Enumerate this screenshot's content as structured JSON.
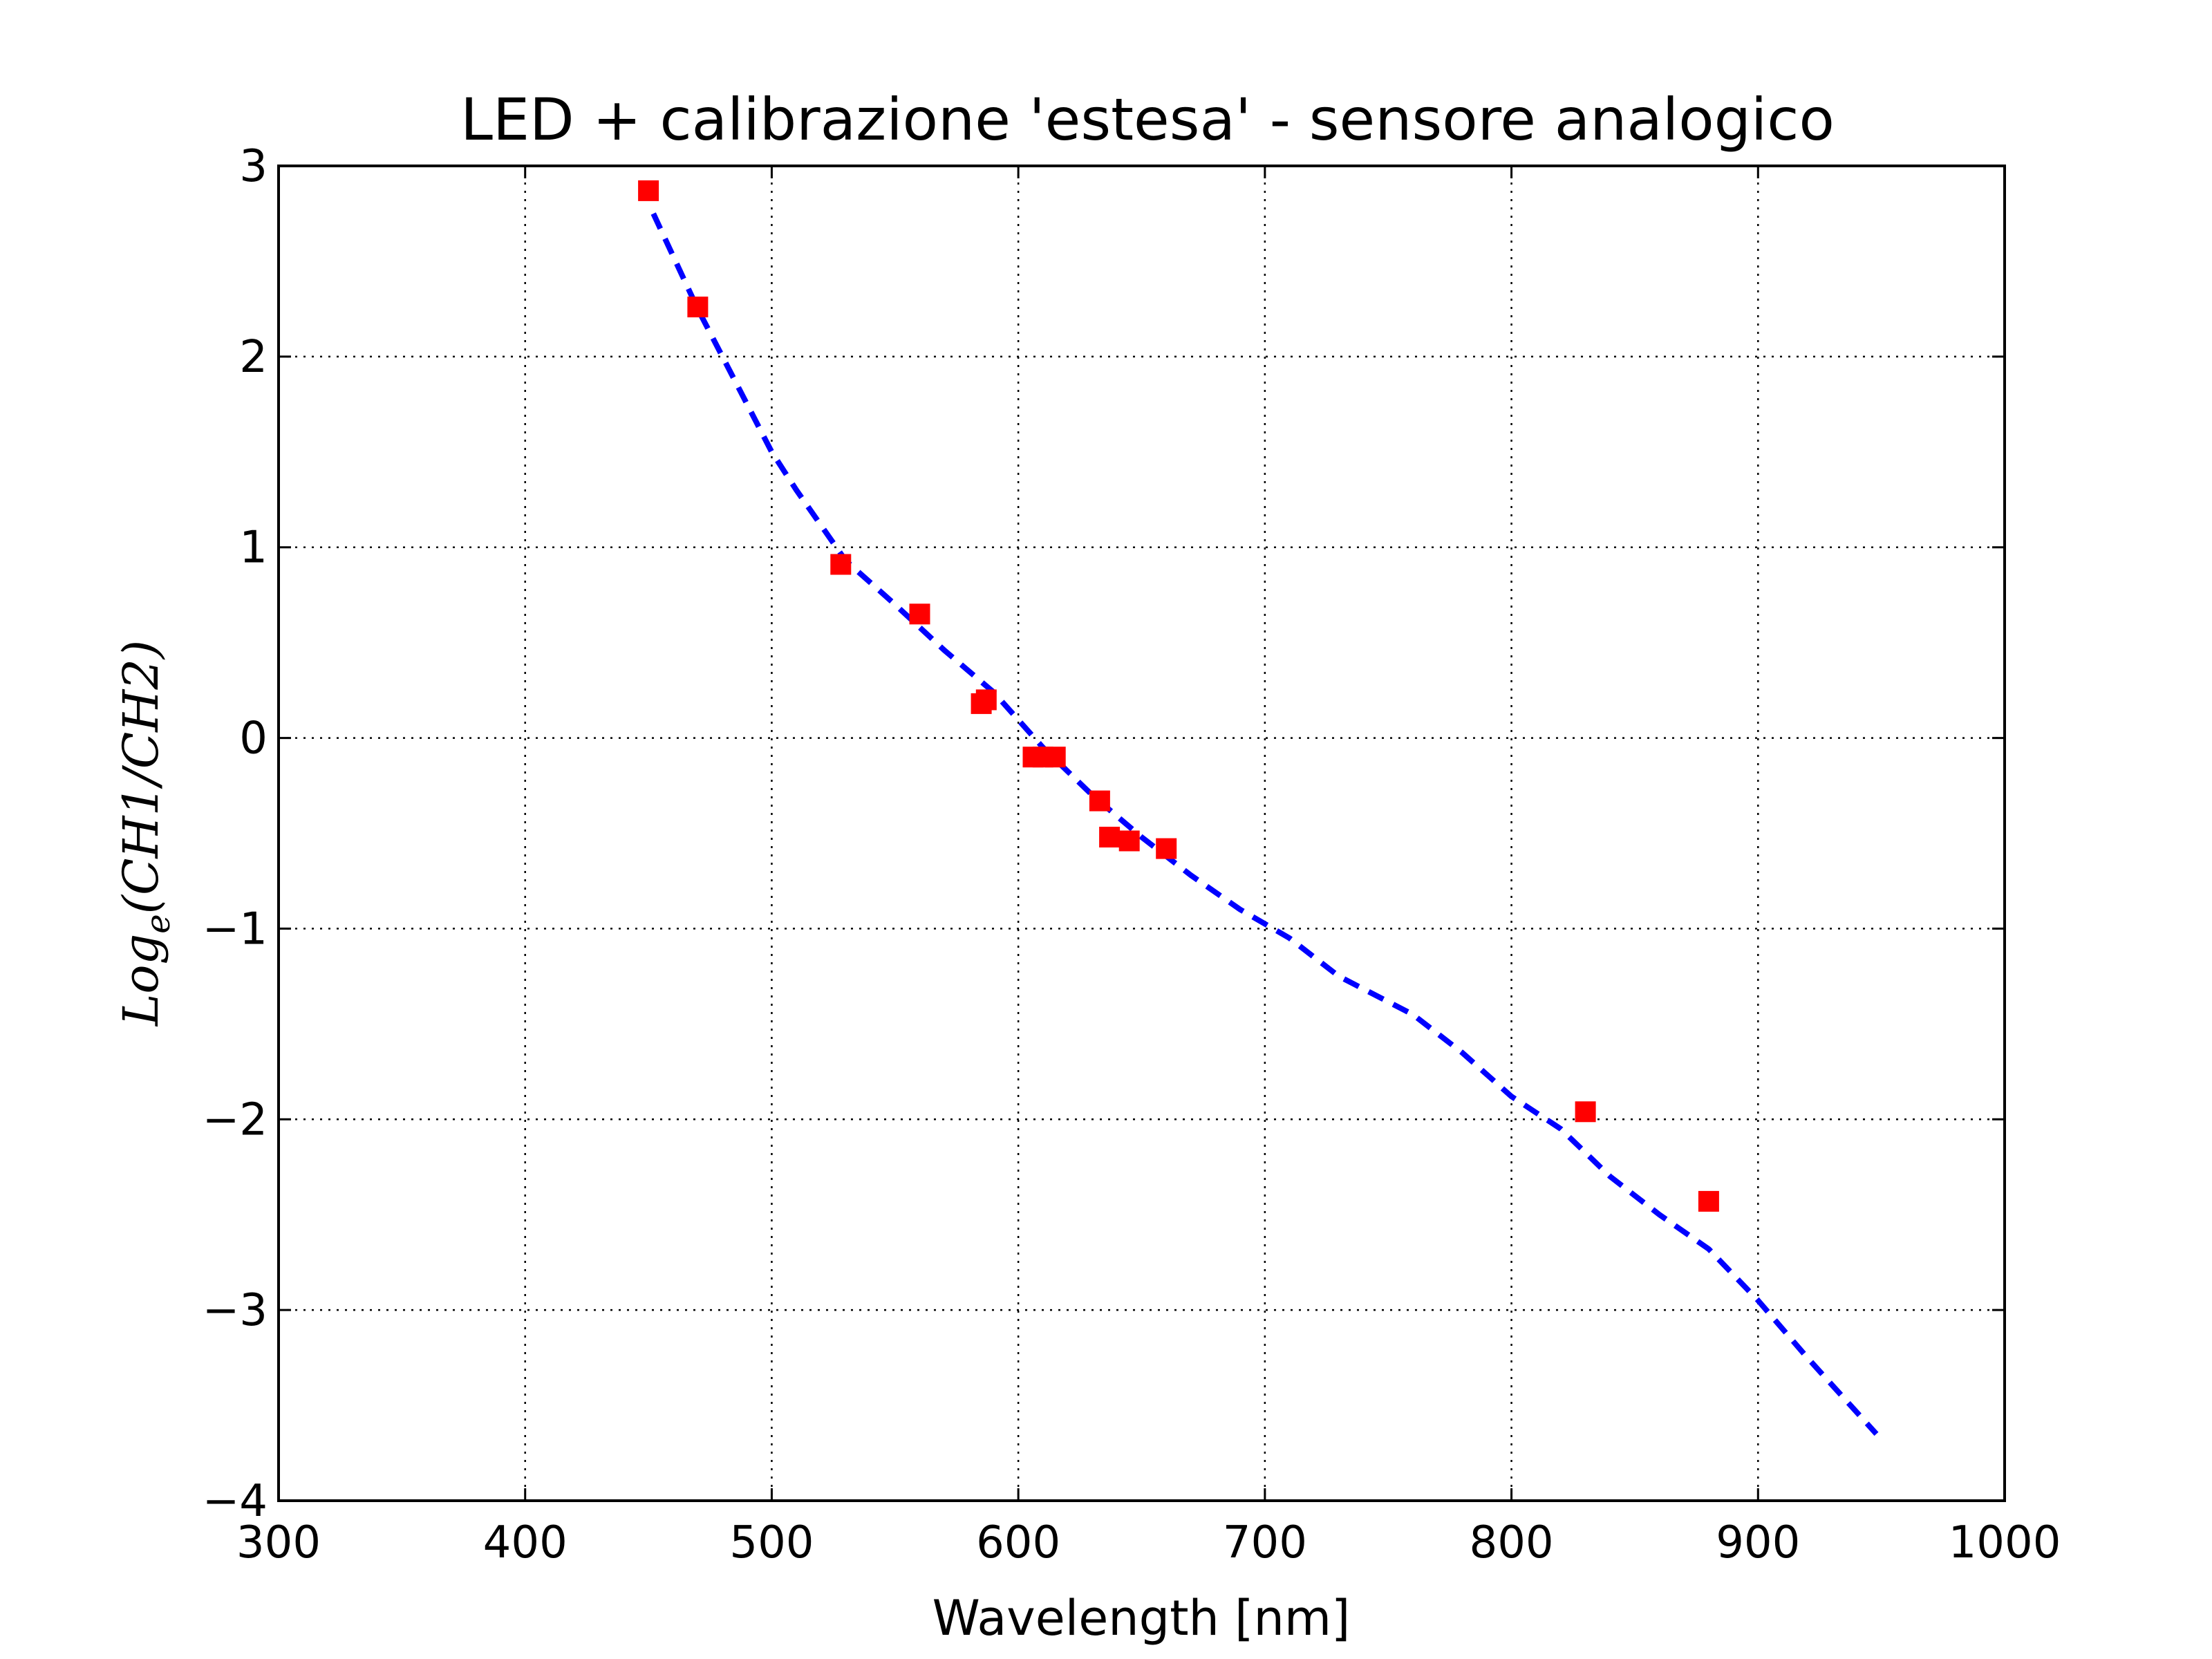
{
  "chart_data": {
    "type": "scatter",
    "title": "LED + calibrazione 'estesa' - sensore analogico",
    "xlabel": "Wavelength [nm]",
    "ylabel": {
      "prefix": "Log",
      "subscript": "e",
      "suffix": "(CH1/CH2)"
    },
    "xlim": [
      300,
      1000
    ],
    "ylim": [
      -4,
      3
    ],
    "xticks": [
      300,
      400,
      500,
      600,
      700,
      800,
      900,
      1000
    ],
    "yticks": [
      3,
      2,
      1,
      0,
      -1,
      -2,
      -3,
      -4
    ],
    "xtick_labels": [
      "300",
      "400",
      "500",
      "600",
      "700",
      "800",
      "900",
      "1000"
    ],
    "ytick_labels": [
      "3",
      "2",
      "1",
      "0",
      "−1",
      "−2",
      "−3",
      "−4"
    ],
    "grid": true,
    "series": [
      {
        "kind": "scatter",
        "marker": "square",
        "color": "#ff0000",
        "x": [
          450,
          470,
          528,
          560,
          585,
          587,
          606,
          610,
          615,
          633,
          637,
          645,
          660,
          830,
          880
        ],
        "y": [
          2.87,
          2.26,
          0.91,
          0.65,
          0.18,
          0.2,
          -0.1,
          -0.1,
          -0.1,
          -0.33,
          -0.52,
          -0.54,
          -0.58,
          -1.96,
          -2.43
        ]
      },
      {
        "kind": "line",
        "style": "dashed",
        "color": "#0000ff",
        "x": [
          452,
          470,
          490,
          500,
          510,
          530,
          550,
          570,
          590,
          610,
          630,
          650,
          670,
          690,
          710,
          730,
          760,
          780,
          800,
          820,
          840,
          860,
          880,
          900,
          920,
          948
        ],
        "y": [
          2.75,
          2.25,
          1.75,
          1.5,
          1.3,
          0.93,
          0.7,
          0.46,
          0.24,
          -0.05,
          -0.3,
          -0.52,
          -0.72,
          -0.9,
          -1.05,
          -1.25,
          -1.45,
          -1.65,
          -1.88,
          -2.05,
          -2.3,
          -2.5,
          -2.68,
          -2.95,
          -3.25,
          -3.65
        ]
      }
    ]
  }
}
